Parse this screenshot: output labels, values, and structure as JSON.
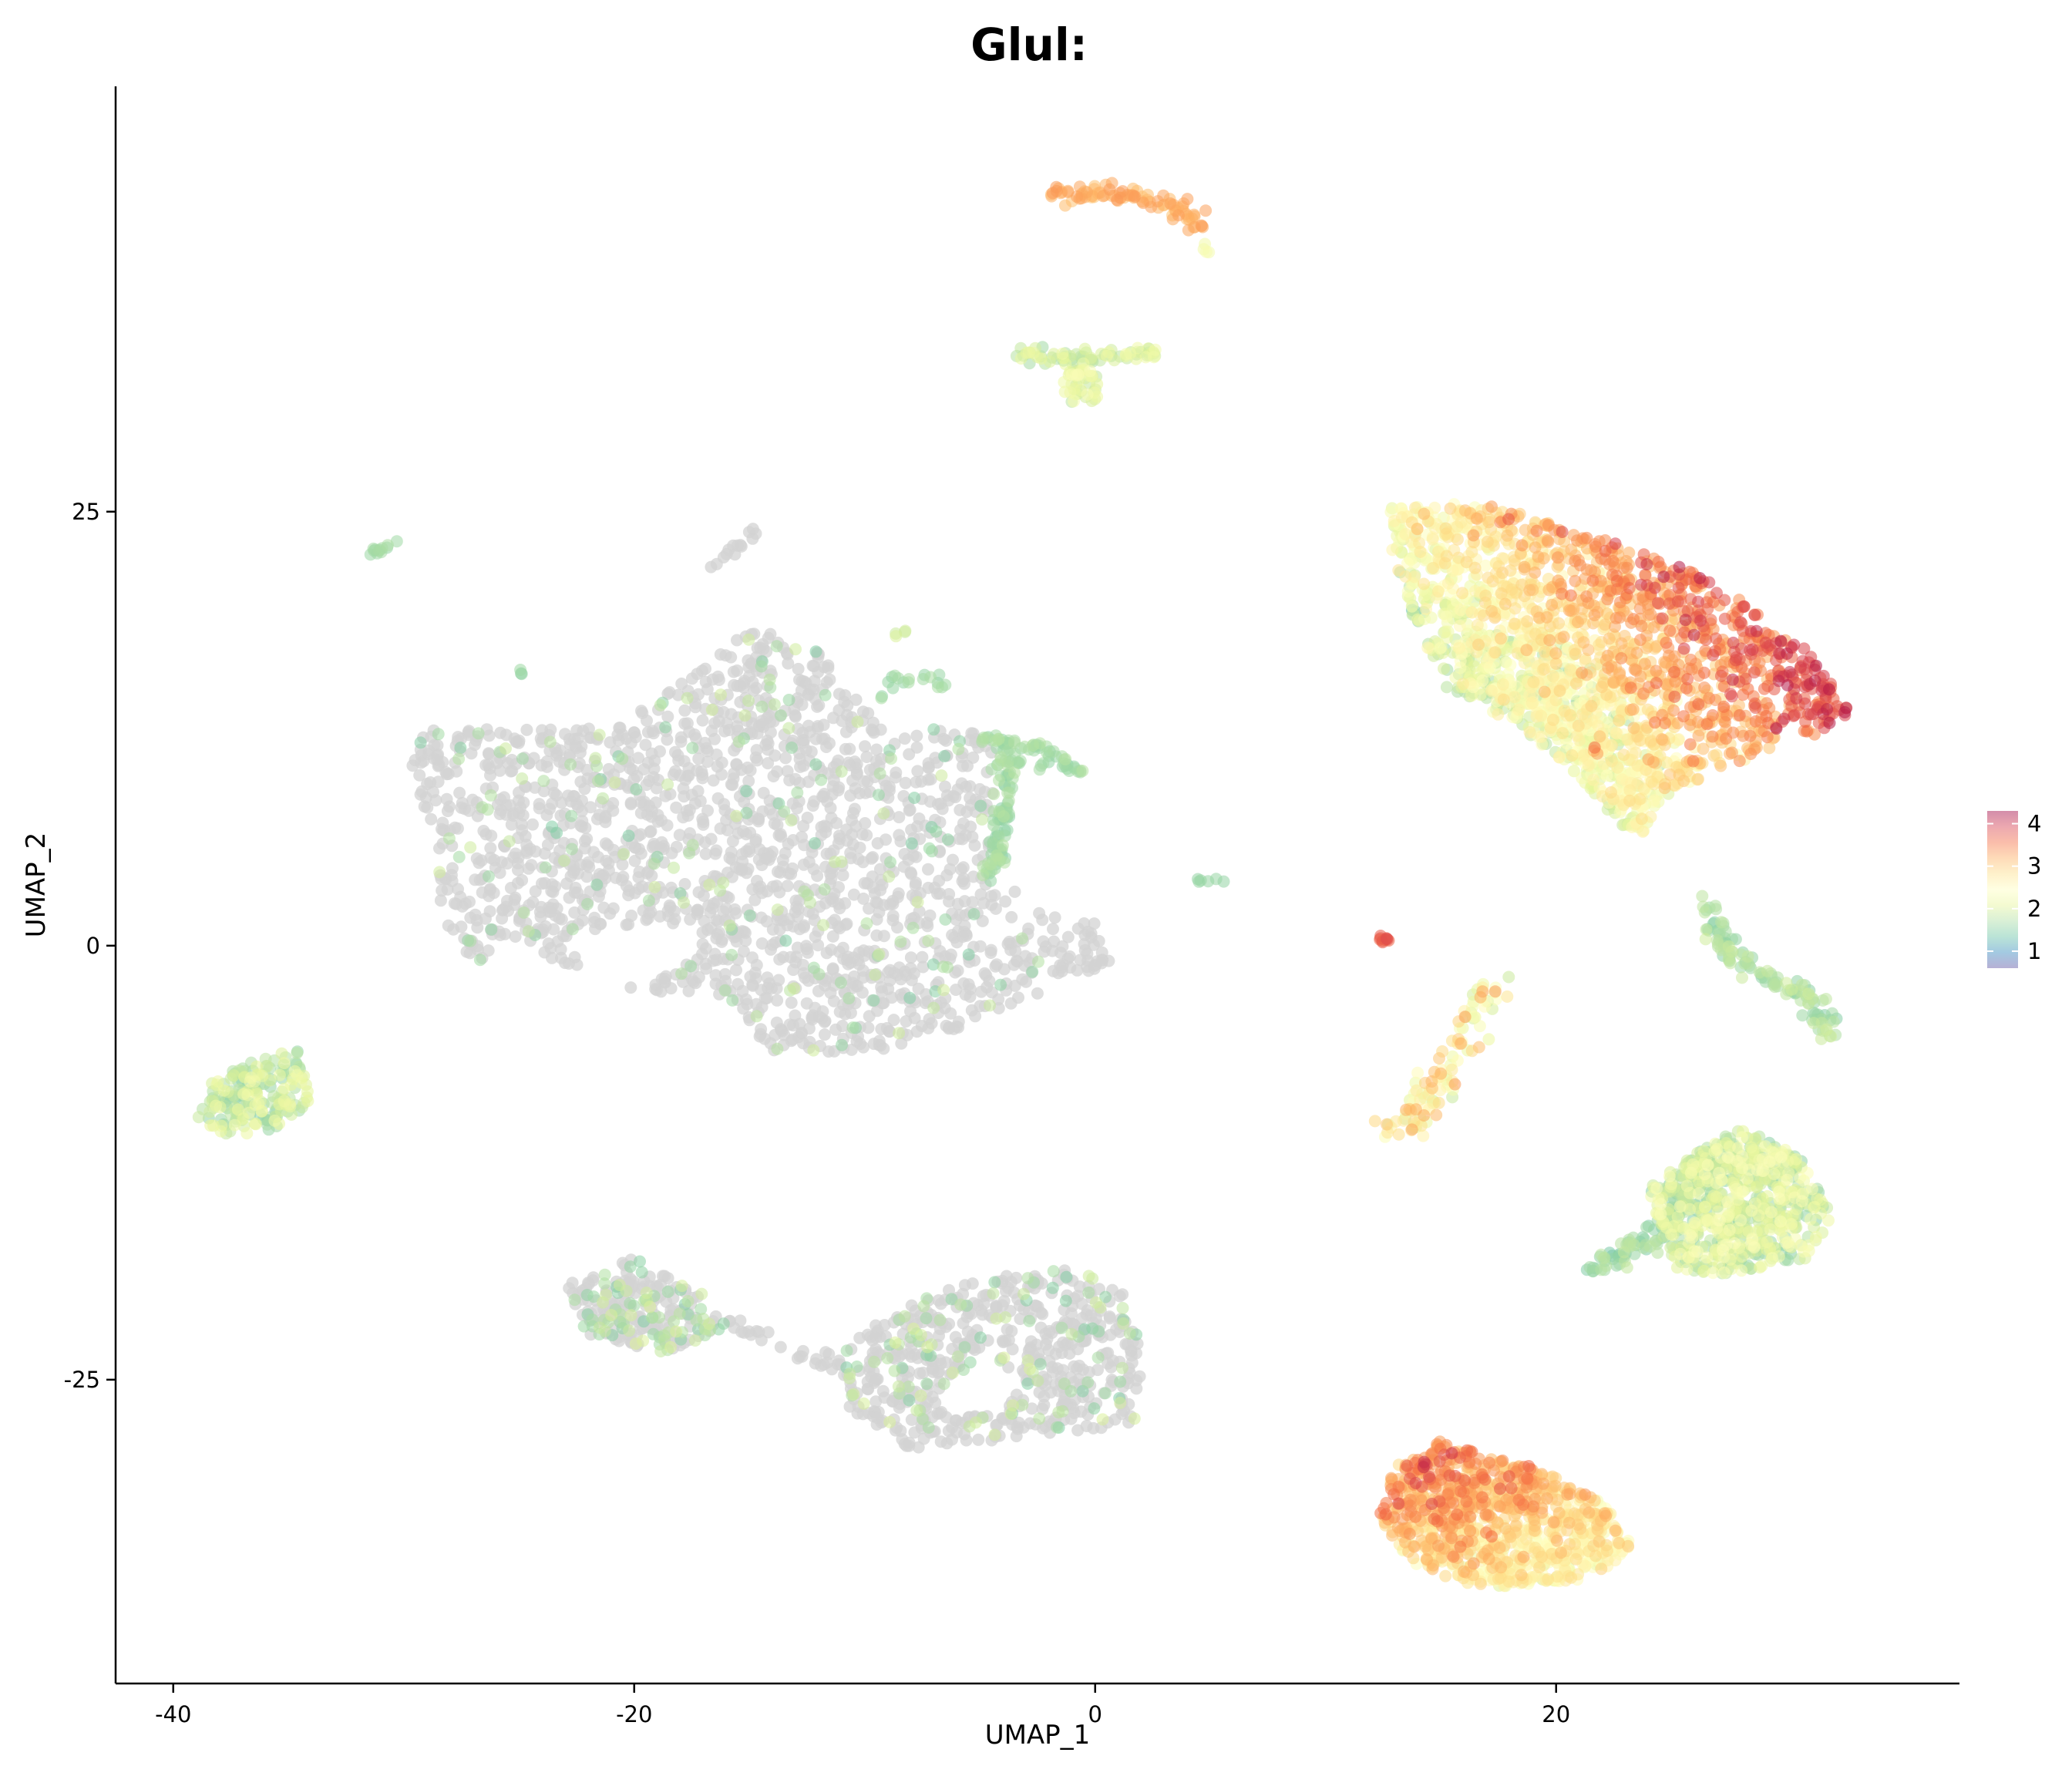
{
  "chart_data": {
    "type": "scatter",
    "title": "Glul:",
    "xlabel": "UMAP_1",
    "ylabel": "UMAP_2",
    "xlim": [
      -42.5,
      37.5
    ],
    "ylim": [
      -42.5,
      49.5
    ],
    "xticks": [
      -40,
      -20,
      0,
      20
    ],
    "yticks": [
      -25,
      0,
      25
    ],
    "xtick_labels": [
      "-40",
      "-20",
      "0",
      "20"
    ],
    "ytick_labels": [
      "-25",
      "0",
      "25"
    ],
    "grid": false,
    "legend": {
      "placement": "right",
      "type": "colorbar",
      "min": 0.6,
      "max": 4.3,
      "ticks": [
        1,
        2,
        3,
        4
      ],
      "tick_labels": [
        "1",
        "2",
        "3",
        "4"
      ],
      "palette": [
        "#5e4fa2",
        "#3288bd",
        "#66c2a5",
        "#abdda4",
        "#e6f598",
        "#ffffbf",
        "#fee08b",
        "#fdae61",
        "#f46d43",
        "#d53e4f",
        "#9e0142"
      ]
    },
    "zero_color": "#d3d3d3",
    "clusters": [
      {
        "id": "top-arc",
        "shape": "arc",
        "x": [
          -2.0,
          0.5,
          3.5,
          4.8
        ],
        "y": [
          43.2,
          43.5,
          42.5,
          41.5
        ],
        "spread": 0.4,
        "n": 90,
        "expr": [
          2.8,
          3.2
        ]
      },
      {
        "id": "top-arc-tail",
        "shape": "blob",
        "cx": 4.9,
        "cy": 40.2,
        "rx": 0.3,
        "ry": 0.4,
        "n": 4,
        "expr": [
          1.8,
          2.0
        ]
      },
      {
        "id": "v-cluster",
        "shape": "arc",
        "x": [
          -3.5,
          -1.5,
          0.5,
          2.5
        ],
        "y": [
          34.0,
          33.8,
          34.0,
          34.2
        ],
        "spread": 0.4,
        "n": 70,
        "expr": [
          1.0,
          1.8
        ]
      },
      {
        "id": "v-cluster-tip",
        "shape": "blob",
        "cx": -0.6,
        "cy": 32.2,
        "rx": 0.8,
        "ry": 1.1,
        "n": 40,
        "expr": [
          1.2,
          2.0
        ]
      },
      {
        "id": "upper-right-main",
        "shape": "poly",
        "poly": [
          [
            12.8,
            25.4
          ],
          [
            17,
            25.5
          ],
          [
            22,
            23.5
          ],
          [
            27,
            21
          ],
          [
            31,
            17
          ],
          [
            33,
            13
          ],
          [
            29,
            11
          ],
          [
            25,
            9
          ],
          [
            23.5,
            6
          ],
          [
            22.5,
            8
          ],
          [
            20,
            12
          ],
          [
            17,
            14
          ],
          [
            15,
            15
          ],
          [
            14,
            18
          ],
          [
            12.8,
            23
          ]
        ],
        "n": 1700,
        "expr": [
          1.0,
          4.3
        ],
        "gradient": {
          "dir": [
            1.0,
            0.6
          ],
          "lo": 1.4,
          "hi": 3.9
        }
      },
      {
        "id": "upper-right-lower",
        "shape": "poly",
        "poly": [
          [
            15,
            18
          ],
          [
            20,
            18
          ],
          [
            23,
            14
          ],
          [
            24.5,
            11
          ],
          [
            24.5,
            8
          ],
          [
            23,
            6.5
          ],
          [
            21.5,
            9
          ],
          [
            19,
            12
          ],
          [
            16,
            14.5
          ]
        ],
        "n": 320,
        "expr": [
          1.0,
          2.4
        ]
      },
      {
        "id": "right-thin-strand",
        "shape": "arc",
        "x": [
          26.5,
          27.5,
          29.5,
          31.0,
          31.7
        ],
        "y": [
          2.5,
          -0.5,
          -2.0,
          -3.0,
          -5.5
        ],
        "spread": 0.45,
        "n": 120,
        "expr": [
          0.8,
          1.4
        ]
      },
      {
        "id": "small-red-dot",
        "shape": "blob",
        "cx": 12.5,
        "cy": 0.3,
        "rx": 0.3,
        "ry": 0.3,
        "n": 10,
        "expr": [
          3.6,
          3.9
        ]
      },
      {
        "id": "mid-right-strand",
        "shape": "arc",
        "x": [
          17.5,
          16.2,
          15.0,
          14.0,
          13.0
        ],
        "y": [
          -2.0,
          -5.0,
          -8.0,
          -9.8,
          -10.8
        ],
        "spread": 0.7,
        "n": 110,
        "expr": [
          1.3,
          3.2
        ]
      },
      {
        "id": "right-mid-blob",
        "shape": "poly",
        "poly": [
          [
            24,
            -14
          ],
          [
            26,
            -12
          ],
          [
            28,
            -10.5
          ],
          [
            30.5,
            -12
          ],
          [
            32,
            -15.5
          ],
          [
            31,
            -18
          ],
          [
            27,
            -19
          ],
          [
            25,
            -18.5
          ],
          [
            24.5,
            -16
          ]
        ],
        "n": 650,
        "expr": [
          0.8,
          2.0
        ]
      },
      {
        "id": "right-mid-blob-arm",
        "shape": "arc",
        "x": [
          21.5,
          23.5,
          25.5,
          27.0
        ],
        "y": [
          -18.5,
          -17.5,
          -14.5,
          -12.0
        ],
        "spread": 0.5,
        "n": 110,
        "expr": [
          0.7,
          1.3
        ]
      },
      {
        "id": "bottom-right-blob",
        "shape": "poly",
        "poly": [
          [
            15,
            -28.5
          ],
          [
            19,
            -30
          ],
          [
            22,
            -32
          ],
          [
            23.6,
            -35
          ],
          [
            21,
            -36.5
          ],
          [
            17,
            -37
          ],
          [
            14,
            -36
          ],
          [
            12.3,
            -33
          ],
          [
            13,
            -30
          ]
        ],
        "n": 900,
        "expr": [
          1.6,
          3.6
        ],
        "gradient": {
          "dir": [
            -0.5,
            1.0
          ],
          "lo": 2.0,
          "hi": 3.4
        }
      },
      {
        "id": "left-small-blob",
        "shape": "poly",
        "poly": [
          [
            -38.5,
            -8
          ],
          [
            -36.5,
            -6.5
          ],
          [
            -34.5,
            -6
          ],
          [
            -34,
            -9
          ],
          [
            -35.5,
            -10.5
          ],
          [
            -37.5,
            -11
          ],
          [
            -39,
            -10
          ]
        ],
        "n": 180,
        "expr": [
          0.8,
          1.8
        ]
      },
      {
        "id": "big-gray-left",
        "shape": "poly",
        "poly": [
          [
            -29,
            12.5
          ],
          [
            -21,
            12.5
          ],
          [
            -17,
            16
          ],
          [
            -15,
            18.5
          ],
          [
            -12,
            17
          ],
          [
            -9,
            12
          ],
          [
            -6,
            13
          ],
          [
            -4,
            11
          ],
          [
            -4.5,
            6
          ],
          [
            -3,
            2
          ],
          [
            0,
            1.5
          ],
          [
            1,
            -1
          ],
          [
            -4,
            -3.5
          ],
          [
            -8,
            -6
          ],
          [
            -14,
            -6.2
          ],
          [
            -16,
            -3
          ],
          [
            -20,
            -2.5
          ],
          [
            -25,
            0
          ],
          [
            -27,
            -1
          ],
          [
            -28.5,
            2
          ],
          [
            -28.5,
            6
          ],
          [
            -30,
            11
          ]
        ],
        "n": 1900,
        "expr": [
          0,
          0
        ],
        "expr_frac": 0.08,
        "expr_range": [
          0.8,
          1.4
        ]
      },
      {
        "id": "gray-hole-left",
        "shape": "poly",
        "poly": [
          [
            -23,
            0.5
          ],
          [
            -19,
            1.5
          ],
          [
            -17,
            0.5
          ],
          [
            -18,
            -1.5
          ],
          [
            -22,
            -2
          ]
        ],
        "n": 0,
        "expr": [
          0,
          0
        ]
      },
      {
        "id": "gray-teal-edge",
        "shape": "arc",
        "x": [
          -4.0,
          -3.8,
          -4.2,
          -4.5
        ],
        "y": [
          11.5,
          9.0,
          6.0,
          4.0
        ],
        "spread": 0.35,
        "n": 90,
        "expr": [
          0.8,
          1.2
        ]
      },
      {
        "id": "gray-teal-edge-top",
        "shape": "arc",
        "x": [
          -5.0,
          -3.0,
          -1.5,
          -0.5
        ],
        "y": [
          12.0,
          11.5,
          11.0,
          10.2
        ],
        "spread": 0.35,
        "n": 45,
        "expr": [
          0.8,
          1.2
        ]
      },
      {
        "id": "small-gray-top",
        "shape": "arc",
        "x": [
          -16.5,
          -15.5,
          -14.8
        ],
        "y": [
          22.0,
          23.0,
          24.0
        ],
        "spread": 0.3,
        "n": 14,
        "expr": [
          0,
          0
        ]
      },
      {
        "id": "small-teal-topleft",
        "shape": "arc",
        "x": [
          -31.5,
          -30.5
        ],
        "y": [
          22.5,
          23.3
        ],
        "spread": 0.3,
        "n": 12,
        "expr": [
          0.9,
          1.1
        ]
      },
      {
        "id": "tiny-teal-dot",
        "shape": "blob",
        "cx": -24.8,
        "cy": 15.8,
        "rx": 0.2,
        "ry": 0.2,
        "n": 3,
        "expr": [
          0.9,
          1.0
        ]
      },
      {
        "id": "tiny-green-dot",
        "shape": "blob",
        "cx": -8.5,
        "cy": 18.0,
        "rx": 0.4,
        "ry": 0.2,
        "n": 4,
        "expr": [
          1.3,
          1.5
        ]
      },
      {
        "id": "upper-teal-hook",
        "shape": "arc",
        "x": [
          -9.5,
          -8.5,
          -7.0,
          -6.3
        ],
        "y": [
          14.5,
          15.3,
          15.5,
          14.8
        ],
        "spread": 0.3,
        "n": 18,
        "expr": [
          0.9,
          1.1
        ]
      },
      {
        "id": "teal-strand-right",
        "shape": "arc",
        "x": [
          -3.5,
          -1.5,
          -0.5
        ],
        "y": [
          10.5,
          10.3,
          10.1
        ],
        "spread": 0.2,
        "n": 14,
        "expr": [
          0.9,
          1.1
        ]
      },
      {
        "id": "small-right-dot",
        "shape": "arc",
        "x": [
          4.3,
          5.5
        ],
        "y": [
          3.6,
          4.0
        ],
        "spread": 0.2,
        "n": 6,
        "expr": [
          0.9,
          1.0
        ]
      },
      {
        "id": "bottom-left-gray",
        "shape": "poly",
        "poly": [
          [
            -23,
            -19.5
          ],
          [
            -20,
            -18
          ],
          [
            -17,
            -20
          ],
          [
            -16,
            -22
          ],
          [
            -18.5,
            -23.5
          ],
          [
            -22,
            -22.5
          ]
        ],
        "n": 230,
        "expr": [
          0,
          0
        ],
        "expr_frac": 0.3,
        "expr_range": [
          0.8,
          1.5
        ]
      },
      {
        "id": "bottom-bridge",
        "shape": "arc",
        "x": [
          -16.0,
          -14.5,
          -13.0,
          -11.5
        ],
        "y": [
          -21.5,
          -22.5,
          -23.5,
          -24.0
        ],
        "spread": 0.4,
        "n": 25,
        "expr": [
          0,
          0
        ]
      },
      {
        "id": "bottom-mid-gray",
        "shape": "poly",
        "poly": [
          [
            -11.5,
            -24
          ],
          [
            -9.5,
            -21.5
          ],
          [
            -7,
            -20
          ],
          [
            -4,
            -19
          ],
          [
            -1,
            -18.5
          ],
          [
            1.5,
            -20
          ],
          [
            2,
            -24
          ],
          [
            1.8,
            -27.5
          ],
          [
            -1,
            -28
          ],
          [
            -4,
            -28.5
          ],
          [
            -8,
            -29
          ],
          [
            -10.5,
            -27
          ]
        ],
        "n": 620,
        "expr": [
          0,
          0
        ],
        "expr_frac": 0.2,
        "expr_range": [
          0.8,
          1.5
        ]
      },
      {
        "id": "bottom-mid-hole",
        "shape": "poly",
        "poly": [
          [
            -7,
            -26
          ],
          [
            -4.5,
            -24
          ],
          [
            -3,
            -25
          ],
          [
            -4,
            -27
          ],
          [
            -6.5,
            -27
          ]
        ],
        "n": 0,
        "expr": [
          0,
          0
        ]
      }
    ]
  }
}
